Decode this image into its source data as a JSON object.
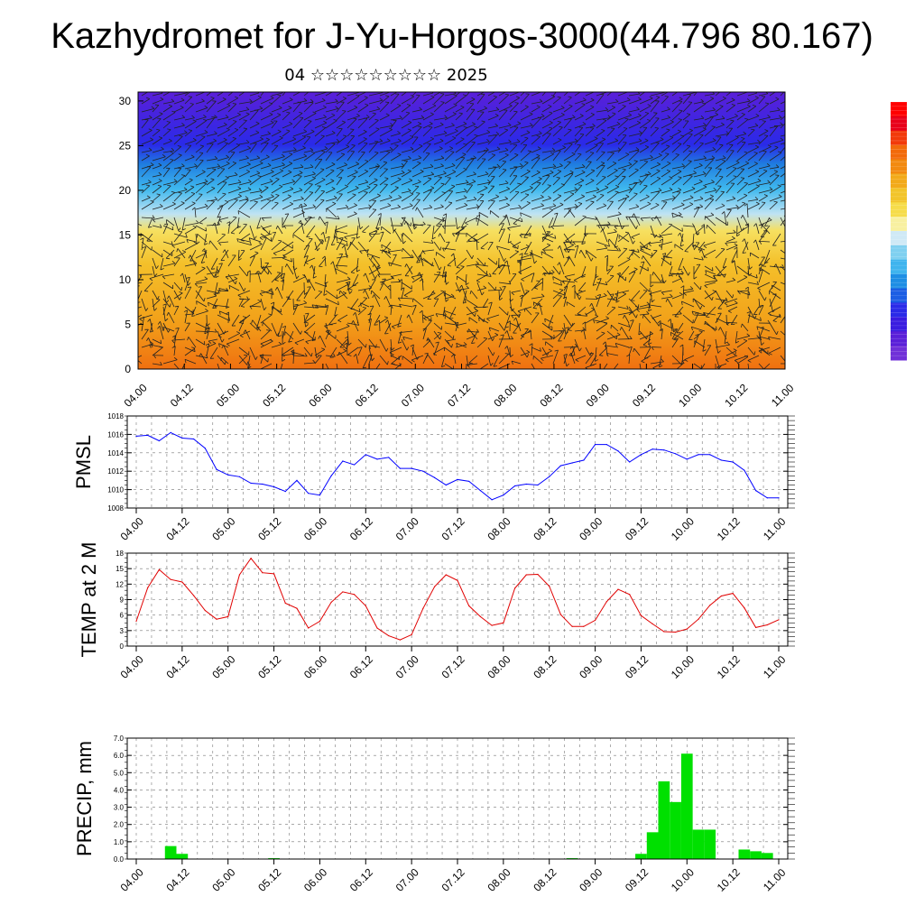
{
  "header": {
    "title": "Kazhydromet for J-Yu-Horgos-3000(44.796 80.167)",
    "subtitle": "04 ☆☆☆☆☆☆☆☆☆ 2025"
  },
  "time_labels": [
    "04.00",
    "04.12",
    "05.00",
    "05.12",
    "06.00",
    "06.12",
    "07.00",
    "07.12",
    "08.00",
    "08.12",
    "09.00",
    "09.12",
    "10.00",
    "10.12",
    "11.00"
  ],
  "chart_data": [
    {
      "type": "heatmap",
      "name": "wind-temperature-cross-section",
      "x": [
        "04.00",
        "04.12",
        "05.00",
        "05.12",
        "06.00",
        "06.12",
        "07.00",
        "07.12",
        "08.00",
        "08.12",
        "09.00",
        "09.12",
        "10.00",
        "10.12",
        "11.00"
      ],
      "ylim": [
        0,
        31
      ],
      "yticks": [
        0,
        5,
        10,
        15,
        20,
        25,
        30
      ],
      "colors": [
        "#5a1fd8",
        "#2a2ae8",
        "#1f7de0",
        "#3fb8ee",
        "#bfe3f3",
        "#f6e060",
        "#f4c02a",
        "#f2a21a",
        "#f07010"
      ]
    },
    {
      "type": "line",
      "ylabel": "PMSL",
      "ylim": [
        1008,
        1018
      ],
      "yticks": [
        1008,
        1010,
        1012,
        1014,
        1016,
        1018
      ],
      "color": "#0000ff",
      "values": [
        1015.8,
        1015.9,
        1015.3,
        1016.2,
        1015.6,
        1015.5,
        1014.5,
        1012.2,
        1011.6,
        1011.4,
        1010.7,
        1010.6,
        1010.3,
        1009.8,
        1011.0,
        1009.6,
        1009.4,
        1011.5,
        1013.1,
        1012.7,
        1013.8,
        1013.3,
        1013.5,
        1012.3,
        1012.3,
        1012.0,
        1011.3,
        1010.5,
        1011.1,
        1010.9,
        1009.9,
        1008.9,
        1009.4,
        1010.4,
        1010.6,
        1010.5,
        1011.4,
        1012.6,
        1012.9,
        1013.2,
        1014.9,
        1014.9,
        1014.2,
        1013.0,
        1013.8,
        1014.4,
        1014.3,
        1013.9,
        1013.3,
        1013.8,
        1013.8,
        1013.2,
        1013.0,
        1012.1,
        1009.9,
        1009.1,
        1009.1
      ]
    },
    {
      "type": "line",
      "ylabel": "TEMP at 2 M",
      "ylim": [
        0,
        18
      ],
      "yticks": [
        0,
        3,
        6,
        9,
        12,
        15,
        18
      ],
      "color": "#e00000",
      "values": [
        4.8,
        11.3,
        14.8,
        12.9,
        12.4,
        9.8,
        6.9,
        5.2,
        5.7,
        13.8,
        17.0,
        14.2,
        14.0,
        8.3,
        7.3,
        3.5,
        4.8,
        8.5,
        10.5,
        10.0,
        7.8,
        3.5,
        2.0,
        1.2,
        2.2,
        7.3,
        11.5,
        13.8,
        12.7,
        7.8,
        5.7,
        4.0,
        4.5,
        11.2,
        13.8,
        13.9,
        11.6,
        6.1,
        3.8,
        3.8,
        5.0,
        8.6,
        11.0,
        10.0,
        5.9,
        4.3,
        2.8,
        2.7,
        3.3,
        5.2,
        7.9,
        9.7,
        10.2,
        7.4,
        3.6,
        4.1,
        5.1
      ]
    },
    {
      "type": "bar",
      "ylabel": "PRECIP, mm",
      "ylim": [
        0,
        7
      ],
      "yticks": [
        "0.0",
        "1.0",
        "2.0",
        "3.0",
        "4.0",
        "5.0",
        "6.0",
        "7.0"
      ],
      "color": "#00e000",
      "values": [
        0,
        0,
        0,
        0.75,
        0.3,
        0,
        0,
        0,
        0,
        0,
        0,
        0,
        0.05,
        0,
        0,
        0,
        0,
        0,
        0,
        0,
        0,
        0,
        0,
        0,
        0,
        0,
        0,
        0,
        0,
        0,
        0,
        0,
        0,
        0,
        0,
        0,
        0,
        0,
        0.05,
        0,
        0,
        0,
        0,
        0,
        0.3,
        1.55,
        4.5,
        3.3,
        6.1,
        1.7,
        1.7,
        0,
        0,
        0.55,
        0.45,
        0.35,
        0
      ]
    }
  ],
  "colorbar": {
    "colors": [
      "#ff0000",
      "#e8001a",
      "#f23a0a",
      "#f26a0a",
      "#f28a10",
      "#f2aa1a",
      "#f2c42a",
      "#f6dc4a",
      "#f8f0a0",
      "#cfe9f6",
      "#7fd0f0",
      "#3fb4ee",
      "#1e8ee4",
      "#1c5ee4",
      "#2a2ae8",
      "#3a1ce0",
      "#5a1fd8",
      "#7030d8"
    ]
  }
}
